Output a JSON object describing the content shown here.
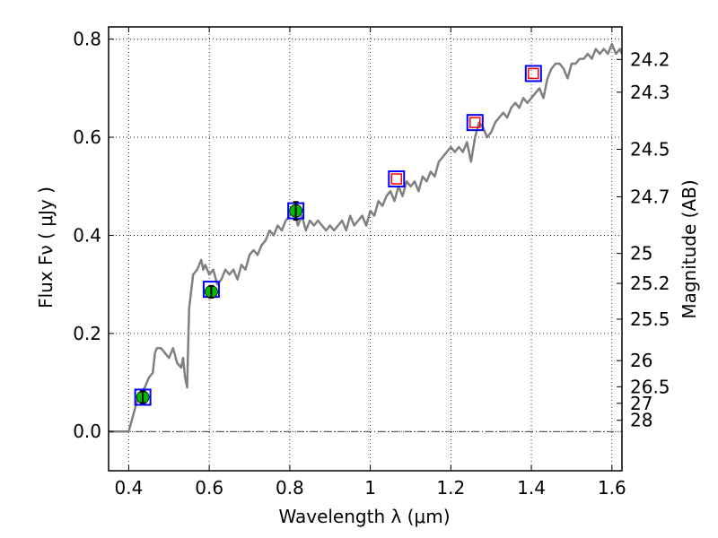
{
  "chart_data": {
    "type": "line",
    "xlabel": "Wavelength  λ (μm)",
    "ylabel": "Flux  Fν  ( μJy )",
    "y2label": "Magnitude (AB)",
    "xlim": [
      0.35,
      1.625
    ],
    "ylim": [
      -0.08,
      0.825
    ],
    "grid": true,
    "x_ticks": [
      0.4,
      0.6,
      0.8,
      1.0,
      1.2,
      1.4,
      1.6
    ],
    "x_tick_labels": [
      "0.4",
      "0.6",
      "0.8",
      "1",
      "1.2",
      "1.4",
      "1.6"
    ],
    "y_ticks": [
      0.0,
      0.2,
      0.4,
      0.6,
      0.8
    ],
    "y_tick_labels": [
      "0.0",
      "0.2",
      "0.4",
      "0.6",
      "0.8"
    ],
    "magnitude_ticks": [
      {
        "label": "24.2",
        "value": 24.2
      },
      {
        "label": "24.3",
        "value": 24.3
      },
      {
        "label": "24.5",
        "value": 24.5
      },
      {
        "label": "24.7",
        "value": 24.7
      },
      {
        "label": "25",
        "value": 25.0
      },
      {
        "label": "25.2",
        "value": 25.2
      },
      {
        "label": "25.5",
        "value": 25.5
      },
      {
        "label": "26",
        "value": 26.0
      },
      {
        "label": "26.5",
        "value": 26.5
      },
      {
        "label": "27",
        "value": 27.0
      },
      {
        "label": "28",
        "value": 28.0
      }
    ],
    "series": [
      {
        "color": "#808080",
        "style": "line",
        "x": [
          0.35,
          0.4,
          0.41,
          0.42,
          0.43,
          0.44,
          0.445,
          0.45,
          0.46,
          0.465,
          0.47,
          0.48,
          0.49,
          0.5,
          0.51,
          0.52,
          0.53,
          0.535,
          0.54,
          0.545,
          0.55,
          0.56,
          0.57,
          0.575,
          0.58,
          0.585,
          0.59,
          0.6,
          0.61,
          0.62,
          0.63,
          0.64,
          0.65,
          0.66,
          0.67,
          0.68,
          0.69,
          0.7,
          0.71,
          0.72,
          0.73,
          0.74,
          0.75,
          0.76,
          0.77,
          0.78,
          0.79,
          0.8,
          0.81,
          0.82,
          0.83,
          0.84,
          0.85,
          0.86,
          0.87,
          0.88,
          0.89,
          0.9,
          0.91,
          0.92,
          0.93,
          0.94,
          0.95,
          0.96,
          0.97,
          0.98,
          0.99,
          1.0,
          1.01,
          1.02,
          1.03,
          1.04,
          1.05,
          1.06,
          1.07,
          1.08,
          1.09,
          1.1,
          1.11,
          1.12,
          1.13,
          1.14,
          1.15,
          1.16,
          1.17,
          1.18,
          1.19,
          1.2,
          1.21,
          1.22,
          1.23,
          1.24,
          1.25,
          1.26,
          1.27,
          1.28,
          1.29,
          1.3,
          1.31,
          1.32,
          1.33,
          1.34,
          1.35,
          1.36,
          1.37,
          1.38,
          1.39,
          1.4,
          1.41,
          1.42,
          1.43,
          1.44,
          1.45,
          1.46,
          1.47,
          1.48,
          1.49,
          1.5,
          1.51,
          1.52,
          1.53,
          1.54,
          1.55,
          1.56,
          1.57,
          1.58,
          1.59,
          1.6,
          1.61,
          1.62,
          1.625
        ],
        "y": [
          0.0,
          0.0,
          0.03,
          0.06,
          0.08,
          0.09,
          0.1,
          0.11,
          0.12,
          0.16,
          0.17,
          0.17,
          0.16,
          0.15,
          0.17,
          0.14,
          0.13,
          0.15,
          0.11,
          0.09,
          0.25,
          0.32,
          0.33,
          0.34,
          0.35,
          0.33,
          0.34,
          0.32,
          0.33,
          0.3,
          0.31,
          0.33,
          0.32,
          0.33,
          0.31,
          0.34,
          0.33,
          0.36,
          0.37,
          0.36,
          0.38,
          0.39,
          0.41,
          0.4,
          0.42,
          0.41,
          0.43,
          0.44,
          0.45,
          0.42,
          0.44,
          0.41,
          0.43,
          0.42,
          0.43,
          0.42,
          0.41,
          0.42,
          0.41,
          0.42,
          0.43,
          0.41,
          0.44,
          0.42,
          0.43,
          0.44,
          0.42,
          0.45,
          0.44,
          0.47,
          0.46,
          0.48,
          0.49,
          0.47,
          0.5,
          0.48,
          0.51,
          0.5,
          0.51,
          0.49,
          0.52,
          0.51,
          0.53,
          0.52,
          0.55,
          0.56,
          0.57,
          0.58,
          0.57,
          0.58,
          0.57,
          0.59,
          0.55,
          0.6,
          0.63,
          0.62,
          0.6,
          0.61,
          0.63,
          0.64,
          0.65,
          0.64,
          0.66,
          0.67,
          0.66,
          0.68,
          0.67,
          0.68,
          0.69,
          0.7,
          0.68,
          0.72,
          0.74,
          0.75,
          0.75,
          0.74,
          0.72,
          0.75,
          0.75,
          0.76,
          0.76,
          0.77,
          0.76,
          0.78,
          0.77,
          0.78,
          0.77,
          0.79,
          0.77,
          0.78,
          0.77
        ]
      },
      {
        "style": "markers",
        "marker": "square",
        "color": "#0000ff",
        "x": [
          0.435,
          0.605,
          0.815,
          1.065,
          1.26,
          1.405
        ],
        "y": [
          0.07,
          0.29,
          0.45,
          0.515,
          0.63,
          0.73
        ]
      },
      {
        "style": "markers",
        "marker": "circle",
        "color": "#00bb00",
        "x": [
          0.435,
          0.605,
          0.815
        ],
        "y": [
          0.07,
          0.285,
          0.45
        ],
        "yerr": [
          0.012,
          0.012,
          0.018
        ]
      },
      {
        "style": "markers",
        "marker": "square-small",
        "color": "#ff0000",
        "x": [
          1.065,
          1.26,
          1.405
        ],
        "y": [
          0.515,
          0.63,
          0.73
        ]
      }
    ]
  }
}
